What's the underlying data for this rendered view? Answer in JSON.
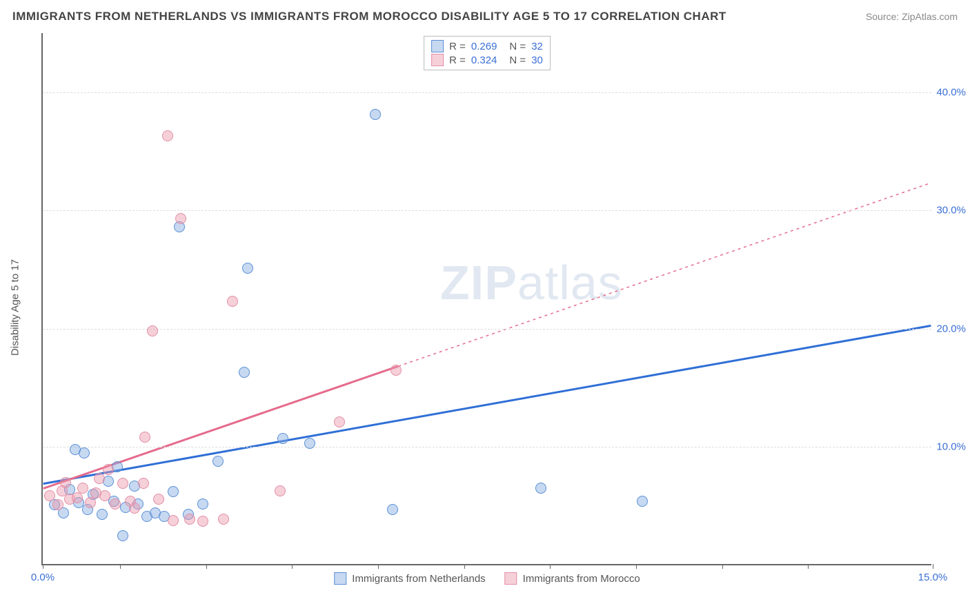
{
  "title": "IMMIGRANTS FROM NETHERLANDS VS IMMIGRANTS FROM MOROCCO DISABILITY AGE 5 TO 17 CORRELATION CHART",
  "source": "Source: ZipAtlas.com",
  "y_axis_title": "Disability Age 5 to 17",
  "watermark_bold": "ZIP",
  "watermark_rest": "atlas",
  "chart": {
    "type": "scatter",
    "background_color": "#ffffff",
    "grid_color": "#dddddd",
    "axis_color": "#666666",
    "label_color": "#3b6fd6",
    "xlim": [
      0,
      15
    ],
    "ylim": [
      0,
      45
    ],
    "x_ticks": [
      0,
      1.3,
      2.75,
      4.2,
      5.65,
      7.1,
      8.55,
      10.0,
      11.45,
      12.9,
      15
    ],
    "x_tick_labels": {
      "0": "0.0%",
      "15": "15.0%"
    },
    "y_grid": [
      10,
      20,
      30,
      40
    ],
    "y_tick_labels": {
      "10": "10.0%",
      "20": "20.0%",
      "30": "30.0%",
      "40": "40.0%"
    }
  },
  "series": [
    {
      "id": "netherlands",
      "label": "Immigrants from Netherlands",
      "point_fill": "rgba(130,170,225,0.45)",
      "point_stroke": "#5a8fd6",
      "line_color": "#2f6fd6",
      "line_width": 3,
      "line_dash": "none",
      "R": "0.269",
      "N": "32",
      "trend": {
        "x1": 0,
        "y1": 6.8,
        "x2": 15,
        "y2": 20.2,
        "x_solid_end": 15
      },
      "points": [
        {
          "x": 0.2,
          "y": 5.0
        },
        {
          "x": 0.35,
          "y": 4.3
        },
        {
          "x": 0.45,
          "y": 6.3
        },
        {
          "x": 0.6,
          "y": 5.2
        },
        {
          "x": 0.7,
          "y": 9.4
        },
        {
          "x": 0.75,
          "y": 4.6
        },
        {
          "x": 0.85,
          "y": 5.9
        },
        {
          "x": 1.0,
          "y": 4.2
        },
        {
          "x": 1.1,
          "y": 7.0
        },
        {
          "x": 1.2,
          "y": 5.3
        },
        {
          "x": 1.35,
          "y": 2.4
        },
        {
          "x": 1.4,
          "y": 4.8
        },
        {
          "x": 1.55,
          "y": 6.6
        },
        {
          "x": 1.6,
          "y": 5.1
        },
        {
          "x": 1.75,
          "y": 4.0
        },
        {
          "x": 1.9,
          "y": 4.3
        },
        {
          "x": 2.05,
          "y": 4.0
        },
        {
          "x": 2.2,
          "y": 6.1
        },
        {
          "x": 2.3,
          "y": 28.5
        },
        {
          "x": 2.45,
          "y": 4.2
        },
        {
          "x": 2.7,
          "y": 5.1
        },
        {
          "x": 2.95,
          "y": 8.7
        },
        {
          "x": 3.4,
          "y": 16.2
        },
        {
          "x": 3.45,
          "y": 25.0
        },
        {
          "x": 4.05,
          "y": 10.6
        },
        {
          "x": 4.5,
          "y": 10.2
        },
        {
          "x": 5.6,
          "y": 38.0
        },
        {
          "x": 5.9,
          "y": 4.6
        },
        {
          "x": 8.4,
          "y": 6.4
        },
        {
          "x": 10.1,
          "y": 5.3
        },
        {
          "x": 0.55,
          "y": 9.7
        },
        {
          "x": 1.25,
          "y": 8.2
        }
      ]
    },
    {
      "id": "morocco",
      "label": "Immigrants from Morocco",
      "point_fill": "rgba(235,150,170,0.45)",
      "point_stroke": "#e28fa5",
      "line_color": "#e56b8c",
      "line_width": 3,
      "line_dash": "4,5",
      "R": "0.324",
      "N": "30",
      "trend": {
        "x1": 0,
        "y1": 6.4,
        "x2": 15,
        "y2": 32.3,
        "x_solid_end": 6.0
      },
      "points": [
        {
          "x": 0.12,
          "y": 5.8
        },
        {
          "x": 0.25,
          "y": 5.0
        },
        {
          "x": 0.32,
          "y": 6.2
        },
        {
          "x": 0.45,
          "y": 5.5
        },
        {
          "x": 0.58,
          "y": 5.6
        },
        {
          "x": 0.68,
          "y": 6.4
        },
        {
          "x": 0.8,
          "y": 5.2
        },
        {
          "x": 0.95,
          "y": 7.2
        },
        {
          "x": 1.05,
          "y": 5.8
        },
        {
          "x": 1.1,
          "y": 8.0
        },
        {
          "x": 1.22,
          "y": 5.1
        },
        {
          "x": 1.35,
          "y": 6.8
        },
        {
          "x": 1.48,
          "y": 5.3
        },
        {
          "x": 1.55,
          "y": 4.7
        },
        {
          "x": 1.7,
          "y": 6.8
        },
        {
          "x": 1.72,
          "y": 10.7
        },
        {
          "x": 1.85,
          "y": 19.7
        },
        {
          "x": 1.95,
          "y": 5.5
        },
        {
          "x": 2.1,
          "y": 36.2
        },
        {
          "x": 2.2,
          "y": 3.7
        },
        {
          "x": 2.32,
          "y": 29.2
        },
        {
          "x": 2.48,
          "y": 3.8
        },
        {
          "x": 2.7,
          "y": 3.6
        },
        {
          "x": 3.05,
          "y": 3.8
        },
        {
          "x": 3.2,
          "y": 22.2
        },
        {
          "x": 4.0,
          "y": 6.2
        },
        {
          "x": 5.0,
          "y": 12.0
        },
        {
          "x": 5.95,
          "y": 16.4
        },
        {
          "x": 0.38,
          "y": 6.9
        },
        {
          "x": 0.9,
          "y": 6.0
        }
      ]
    }
  ]
}
